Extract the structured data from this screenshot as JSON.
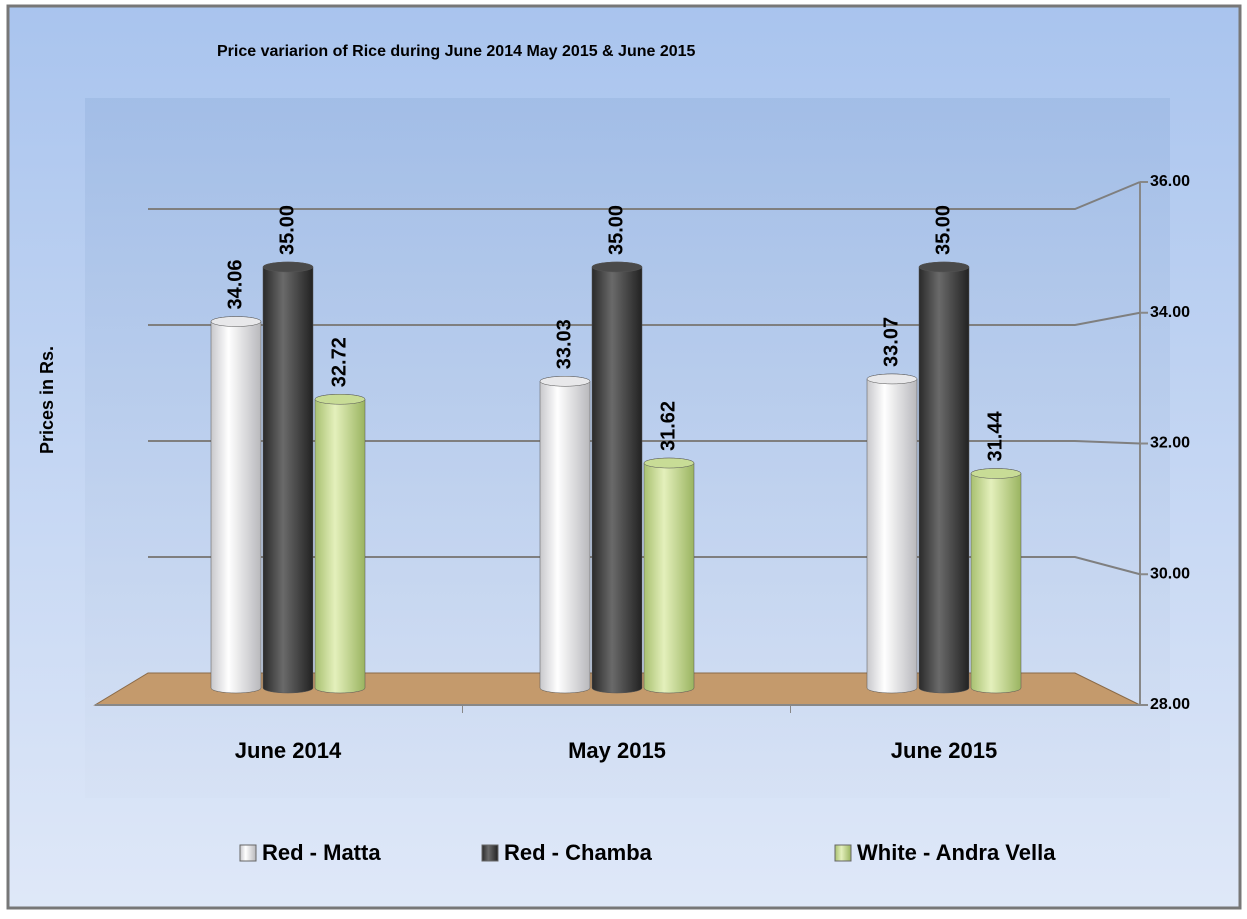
{
  "chart_data": {
    "type": "bar",
    "title": "Price variarion of Rice during June 2014 May 2015 & June 2015",
    "y_label": "Prices in Rs.",
    "categories": [
      "June 2014",
      "May 2015",
      "June 2015"
    ],
    "series": [
      {
        "name": "Red - Matta",
        "color": "#e8e8ea",
        "values": [
          34.06,
          33.03,
          33.07
        ]
      },
      {
        "name": "Red - Chamba",
        "color": "#4a4a4a",
        "values": [
          35,
          35,
          35
        ],
        "value_labels": [
          "35.00",
          "35.00",
          "35.00"
        ]
      },
      {
        "name": "White - Andra Vella",
        "color": "#c8dc96",
        "values": [
          32.72,
          31.62,
          31.44
        ]
      }
    ],
    "ylim": [
      28,
      36
    ],
    "yticks": [
      {
        "value": 28,
        "label": "28.00"
      },
      {
        "value": 30,
        "label": "30.00"
      },
      {
        "value": 32,
        "label": "32.00"
      },
      {
        "value": 34,
        "label": "34.00"
      },
      {
        "value": 36,
        "label": "36.00"
      }
    ],
    "grid": true,
    "legend": "bottom"
  }
}
